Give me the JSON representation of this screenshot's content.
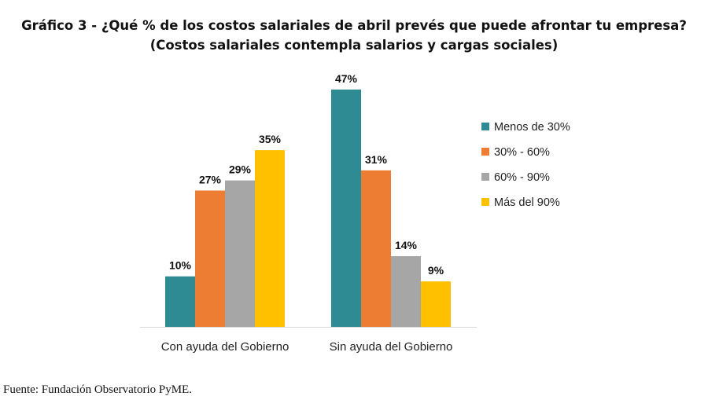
{
  "title_line1": "Gráfico 3 - ¿Qué % de los costos salariales de abril prevés que puede afrontar tu empresa?",
  "title_line2": "(Costos salariales contempla salarios y cargas sociales)",
  "source": "Fuente: Fundación Observatorio PyME.",
  "chart_data": {
    "type": "bar",
    "title": "Gráfico 3 - ¿Qué % de los costos salariales de abril prevés que puede afrontar tu empresa?",
    "subtitle": "(Costos salariales contempla salarios y cargas sociales)",
    "categories": [
      "Con ayuda del Gobierno",
      "Sin ayuda del Gobierno"
    ],
    "series": [
      {
        "name": "Menos de 30%",
        "values": [
          10,
          47
        ],
        "labels": [
          "10%",
          "47%"
        ],
        "color": "#2E8A93"
      },
      {
        "name": "30% - 60%",
        "values": [
          27,
          31
        ],
        "labels": [
          "27%",
          "31%"
        ],
        "color": "#EE7D34"
      },
      {
        "name": "60% - 90%",
        "values": [
          29,
          14
        ],
        "labels": [
          "29%",
          "14%"
        ],
        "color": "#A6A6A6"
      },
      {
        "name": "Más del 90%",
        "values": [
          35,
          9
        ],
        "labels": [
          "35%",
          "9%"
        ],
        "color": "#FFC000"
      }
    ],
    "xlabel": "",
    "ylabel": "",
    "ylim": [
      0,
      50
    ],
    "grid": false,
    "legend": "right"
  }
}
